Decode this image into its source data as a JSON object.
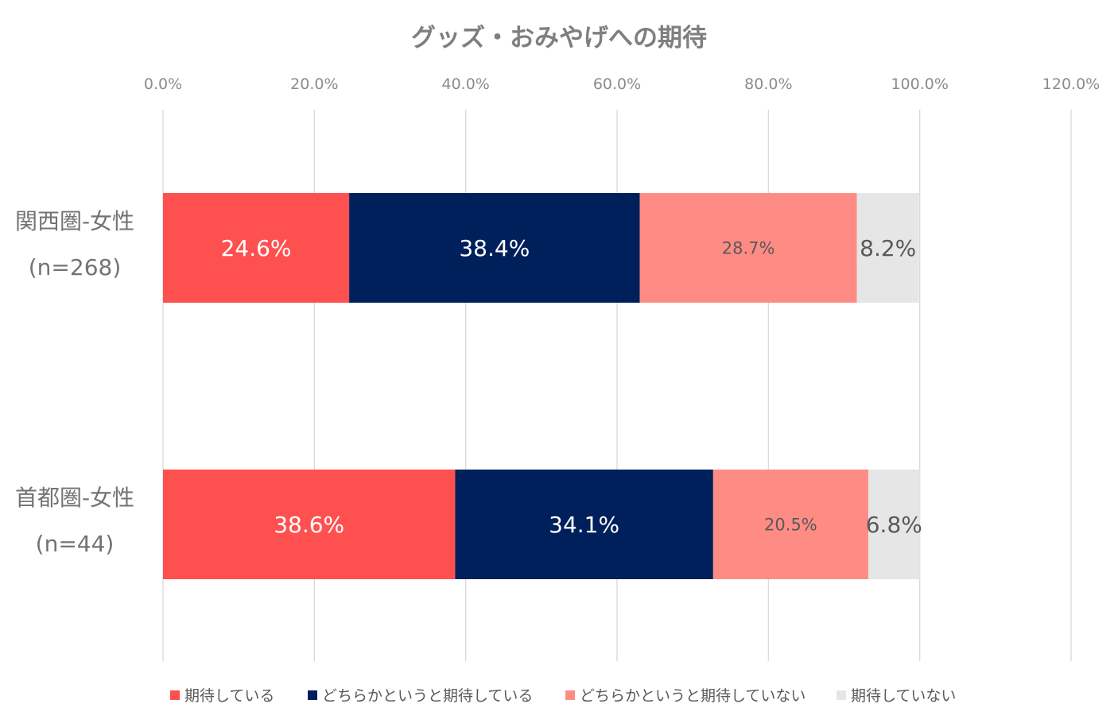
{
  "chart_data": {
    "type": "bar",
    "orientation": "horizontal",
    "stacked": true,
    "title": "グッズ・おみやげへの期待",
    "categories": [
      "関西圏-女性\n(n=268)",
      "首都圏-女性\n(n=44)"
    ],
    "xlim": [
      0,
      120
    ],
    "x_ticks": [
      "0.0%",
      "20.0%",
      "40.0%",
      "60.0%",
      "80.0%",
      "100.0%",
      "120.0%"
    ],
    "grid": true,
    "legend_position": "bottom",
    "series": [
      {
        "name": "期待している",
        "color": "#ff5050",
        "values": [
          24.6,
          38.6
        ],
        "labels": [
          "24.6%",
          "38.6%"
        ]
      },
      {
        "name": "どちらかというと期待している",
        "color": "#00205b",
        "values": [
          38.4,
          34.1
        ],
        "labels": [
          "38.4%",
          "34.1%"
        ]
      },
      {
        "name": "どちらかというと期待していない",
        "color": "#ff8c84",
        "values": [
          28.7,
          20.5
        ],
        "labels": [
          "28.7%",
          "20.5%"
        ]
      },
      {
        "name": "期待していない",
        "color": "#e7e6e6",
        "values": [
          8.2,
          6.8
        ],
        "labels": [
          "8.2%",
          "6.8%"
        ]
      }
    ]
  }
}
